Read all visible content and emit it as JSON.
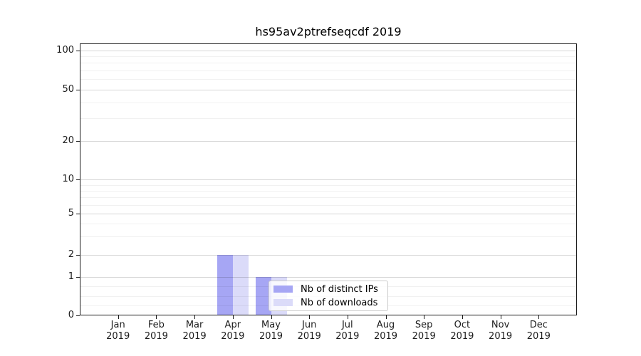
{
  "chart": {
    "title": "hs95av2ptrefseqcdf 2019"
  },
  "chart_data": {
    "type": "bar",
    "title": "hs95av2ptrefseqcdf 2019",
    "year": "2019",
    "months": [
      "Jan",
      "Feb",
      "Mar",
      "Apr",
      "May",
      "Jun",
      "Jul",
      "Aug",
      "Sep",
      "Oct",
      "Nov",
      "Dec"
    ],
    "series": [
      {
        "name": "Nb of distinct IPs",
        "color": "#a6a6f4",
        "values": [
          0,
          0,
          0,
          2,
          1,
          0,
          0,
          0,
          0,
          0,
          0,
          0
        ]
      },
      {
        "name": "Nb of downloads",
        "color": "#dbdbf9",
        "values": [
          0,
          0,
          0,
          2,
          1,
          0,
          0,
          0,
          0,
          0,
          0,
          0
        ]
      }
    ],
    "y_ticks": [
      0,
      1,
      2,
      5,
      10,
      20,
      50,
      100
    ],
    "y_scale": "symlog",
    "ylim": [
      0,
      100
    ],
    "grid": "horizontal major+minor",
    "legend_position": "lower right of center"
  }
}
